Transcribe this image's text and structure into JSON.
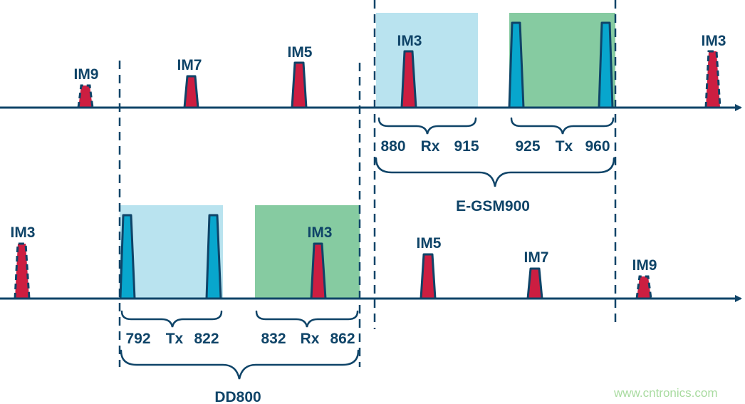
{
  "colors": {
    "axis": "#0f4468",
    "intermod": "#cc1e41",
    "carrier": "#08a6cd",
    "rx_band": "#b9e3ef",
    "tx_band": "#86cba1"
  },
  "top": {
    "peaks": [
      "IM9",
      "IM7",
      "IM5",
      "IM3",
      "IM3"
    ],
    "rx": {
      "low": "880",
      "label": "Rx",
      "high": "915"
    },
    "tx": {
      "low": "925",
      "label": "Tx",
      "high": "960"
    },
    "band": "E-GSM900"
  },
  "bottom": {
    "peaks": [
      "IM3",
      "IM3",
      "IM5",
      "IM7",
      "IM9"
    ],
    "tx": {
      "low": "792",
      "label": "Tx",
      "high": "822"
    },
    "rx": {
      "low": "832",
      "label": "Rx",
      "high": "862"
    },
    "band": "DD800"
  },
  "watermark": "www.cntronics.com"
}
